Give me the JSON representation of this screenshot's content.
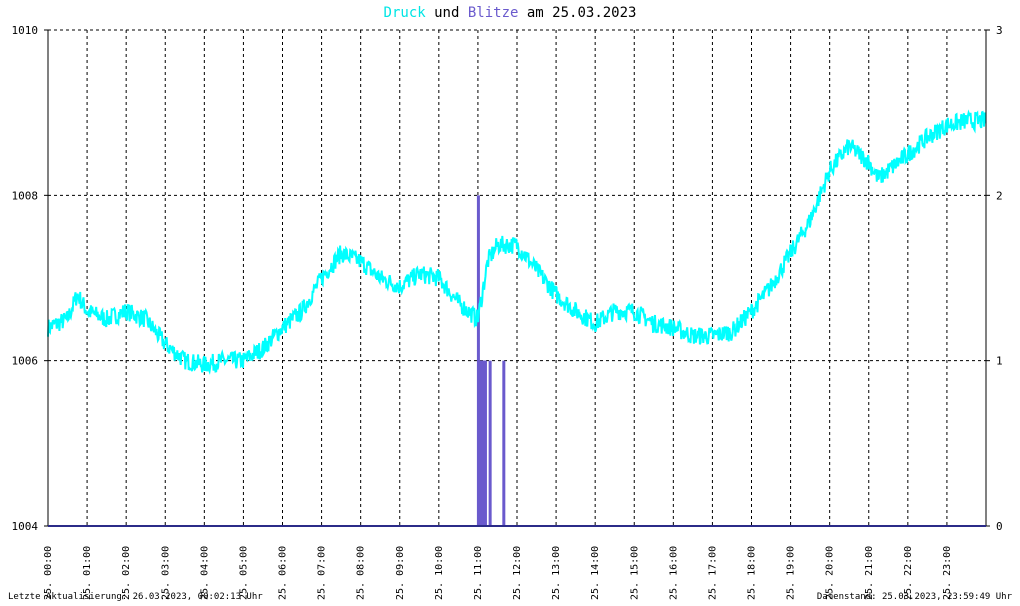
{
  "header": {
    "title_word1": "Druck",
    "title_word2": "und",
    "title_word3": "Blitze",
    "title_word4": "am",
    "title_date": "25.03.2023"
  },
  "footer": {
    "left": "Letzte Aktualisierung: 26.03.2023, 00:02:13 Uhr",
    "right": "Datenstand: 25.03.2023, 23:59:49 Uhr"
  },
  "colors": {
    "pressure": "#00ffff",
    "lightning": "#6a5acd",
    "title_pressure": "#00e5e5",
    "grid": "#000000"
  },
  "chart_data": {
    "type": "line",
    "x_range_hours": [
      0,
      24
    ],
    "x_ticks": [
      "25. 00:00",
      "25. 01:00",
      "25. 02:00",
      "25. 03:00",
      "25. 04:00",
      "25. 05:00",
      "25. 06:00",
      "25. 07:00",
      "25. 08:00",
      "25. 09:00",
      "25. 10:00",
      "25. 11:00",
      "25. 12:00",
      "25. 13:00",
      "25. 14:00",
      "25. 15:00",
      "25. 16:00",
      "25. 17:00",
      "25. 18:00",
      "25. 19:00",
      "25. 20:00",
      "25. 21:00",
      "25. 22:00",
      "25. 23:00"
    ],
    "y_left": {
      "min": 1004,
      "max": 1010,
      "ticks": [
        "1004",
        "1006",
        "1008",
        "1010"
      ]
    },
    "y_right": {
      "min": 0,
      "max": 3,
      "ticks": [
        "0",
        "1",
        "2",
        "3"
      ]
    },
    "grid": true,
    "series": [
      {
        "name": "Druck",
        "axis": "left",
        "x": [
          0,
          0.5,
          0.75,
          1,
          1.5,
          2,
          2.5,
          3,
          3.5,
          4,
          4.5,
          5,
          5.5,
          6,
          6.5,
          7,
          7.5,
          8,
          8.5,
          9,
          9.5,
          10,
          10.5,
          11,
          11.25,
          11.5,
          12,
          12.5,
          13,
          13.5,
          14,
          14.5,
          15,
          15.5,
          16,
          16.5,
          17,
          17.5,
          18,
          18.5,
          19,
          19.5,
          20,
          20.5,
          21,
          21.25,
          21.5,
          22,
          22.5,
          23,
          23.5,
          24
        ],
        "y": [
          1006.4,
          1006.5,
          1006.8,
          1006.6,
          1006.5,
          1006.6,
          1006.5,
          1006.2,
          1006.0,
          1005.95,
          1006.0,
          1006.0,
          1006.15,
          1006.4,
          1006.6,
          1007.0,
          1007.3,
          1007.2,
          1007.0,
          1006.9,
          1007.05,
          1007.0,
          1006.7,
          1006.5,
          1007.2,
          1007.4,
          1007.4,
          1007.1,
          1006.8,
          1006.6,
          1006.45,
          1006.6,
          1006.6,
          1006.45,
          1006.4,
          1006.3,
          1006.3,
          1006.35,
          1006.6,
          1006.9,
          1007.3,
          1007.7,
          1008.3,
          1008.6,
          1008.4,
          1008.2,
          1008.3,
          1008.5,
          1008.7,
          1008.85,
          1008.9,
          1008.9
        ]
      },
      {
        "name": "Blitze",
        "axis": "right",
        "bars": [
          {
            "x": 11.0,
            "value": 2
          },
          {
            "x": 11.03,
            "value": 1
          },
          {
            "x": 11.06,
            "value": 1
          },
          {
            "x": 11.09,
            "value": 1
          },
          {
            "x": 11.12,
            "value": 1
          },
          {
            "x": 11.15,
            "value": 1
          },
          {
            "x": 11.18,
            "value": 1
          },
          {
            "x": 11.3,
            "value": 1
          },
          {
            "x": 11.65,
            "value": 1
          }
        ]
      }
    ]
  }
}
